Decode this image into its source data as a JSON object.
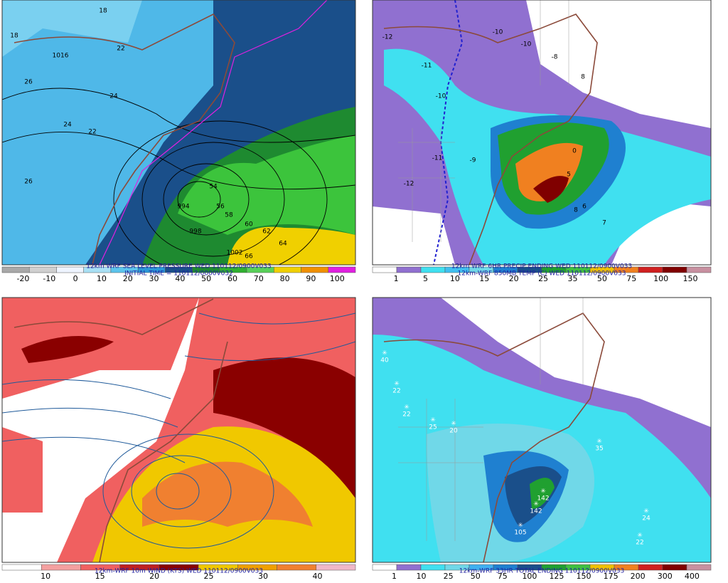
{
  "panels": [
    {
      "caption": "12km WRF SEA LEVEL PRESSURE WED 110112/0900V033",
      "caption2": "INITIAL TIME = 110112/0000V032",
      "colorbar_colors": [
        "#a8a8a8",
        "#d0d0d0",
        "#eef4ff",
        "#a8e0f4",
        "#5cc4ec",
        "#2c98d8",
        "#1a4f8a",
        "#1e8a30",
        "#30b030",
        "#58d058",
        "#f0d000",
        "#f09000",
        "#e020e0"
      ],
      "colorbar_ticks": [
        -20,
        -10,
        0,
        10,
        20,
        30,
        40,
        50,
        60,
        70,
        80,
        90,
        100
      ],
      "contour_labels": [
        "18",
        "18",
        "1016",
        "22",
        "26",
        "24",
        "26",
        "22",
        "24",
        "994",
        "998",
        "1002",
        "54",
        "56",
        "58",
        "60",
        "62",
        "64",
        "66"
      ]
    },
    {
      "caption": "12km WRF 6HR PRECIP ENDING WED 110112/0900V033",
      "caption2": "12km-WRF 850MB TEMP (C) WED 110112/0900V033",
      "colorbar_colors": [
        "#ffffff",
        "#9070d0",
        "#40e0f0",
        "#40c0f0",
        "#70d8e8",
        "#1f80d0",
        "#1a4f8a",
        "#20a030",
        "#40c040",
        "#f0c000",
        "#f08020",
        "#d02020",
        "#800000",
        "#c890a0"
      ],
      "colorbar_ticks": [
        1,
        5,
        10,
        15,
        20,
        25,
        35,
        50,
        75,
        100,
        150
      ],
      "contour_labels": [
        "-12",
        "-10",
        "-11",
        "-10",
        "-8",
        "-10",
        "-11",
        "-12",
        "-9",
        "8",
        "8",
        "7",
        "6",
        "5",
        "0"
      ]
    },
    {
      "caption": "12km-WRF 10m WIND (KTS) WED 110112/0900V033",
      "caption2": "",
      "colorbar_colors": [
        "#ffffff",
        "#f4a0a0",
        "#f06060",
        "#c02020",
        "#8a0000",
        "#f0c800",
        "#f0a000",
        "#f08030",
        "#f0b8c8"
      ],
      "colorbar_ticks": [
        10,
        15,
        20,
        25,
        30,
        40
      ],
      "contour_labels": []
    },
    {
      "caption": "12km-WRF 33HR TOTAL ENDING 110112/0900V033",
      "caption2": "",
      "colorbar_colors": [
        "#ffffff",
        "#9070d0",
        "#40e0f0",
        "#70d8e8",
        "#40b0f0",
        "#1f80d0",
        "#1a4f8a",
        "#20a030",
        "#40c040",
        "#f0c000",
        "#f08020",
        "#d02020",
        "#800000",
        "#c890a0"
      ],
      "colorbar_ticks": [
        1,
        10,
        25,
        50,
        75,
        100,
        125,
        150,
        175,
        200,
        300,
        400
      ],
      "contour_labels": [
        "40",
        "22",
        "22",
        "25",
        "20",
        "35",
        "142",
        "142",
        "105",
        "24",
        "22"
      ]
    }
  ]
}
